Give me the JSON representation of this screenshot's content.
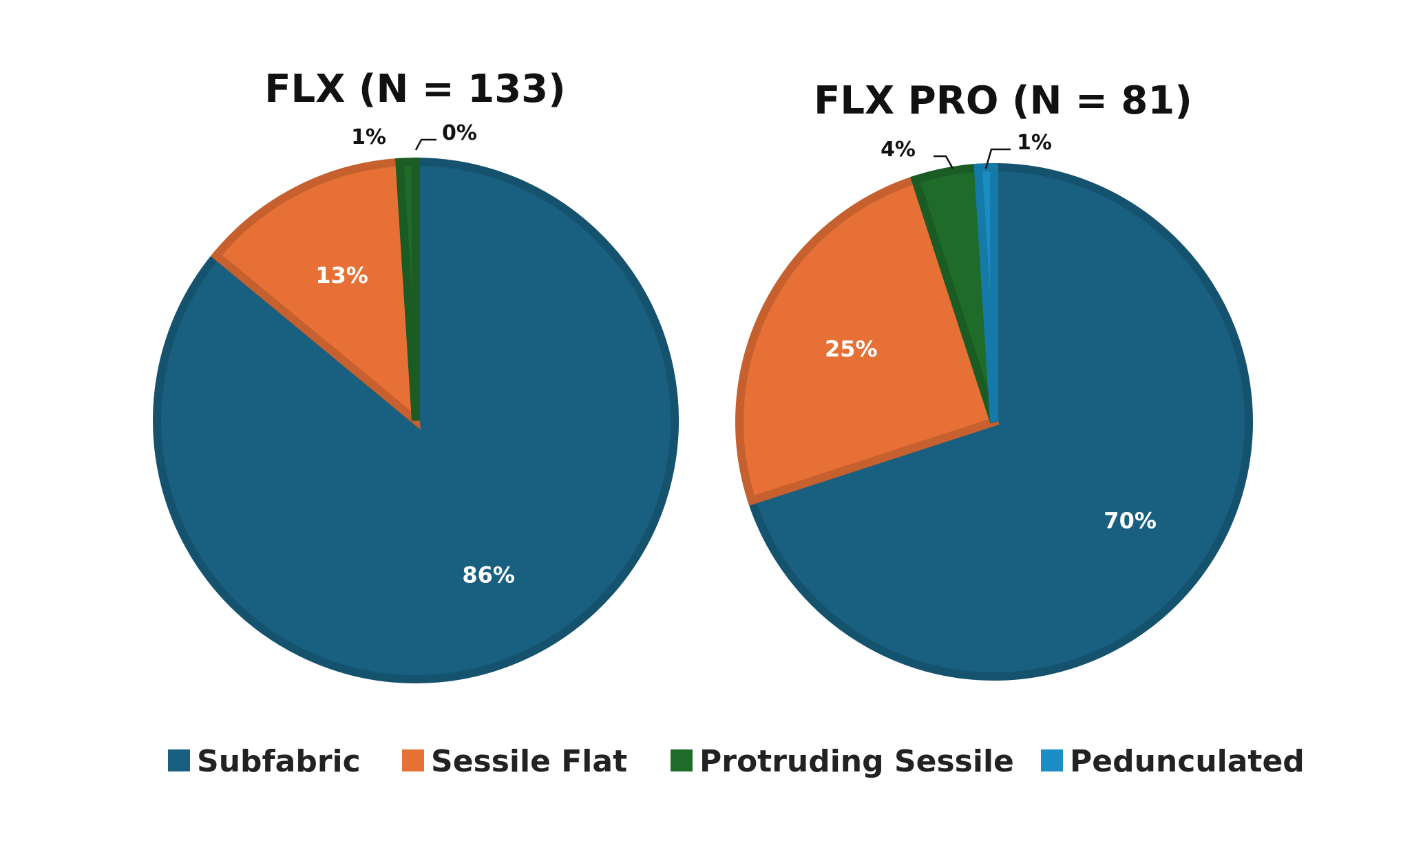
{
  "colors": {
    "Subfabric": "#185f80",
    "Sessile Flat": "#e67035",
    "Protruding Sessile": "#1e6b2a",
    "Pedunculated": "#1a8ec4"
  },
  "chart_data": [
    {
      "type": "pie",
      "title": "FLX (N = 133)",
      "categories": [
        "Subfabric",
        "Sessile Flat",
        "Protruding Sessile",
        "Pedunculated"
      ],
      "values": [
        86,
        13,
        1,
        0
      ],
      "labels": [
        "86%",
        "13%",
        "1%",
        "0%"
      ],
      "legend_position": "bottom"
    },
    {
      "type": "pie",
      "title": "FLX PRO (N = 81)",
      "categories": [
        "Subfabric",
        "Sessile Flat",
        "Protruding Sessile",
        "Pedunculated"
      ],
      "values": [
        70,
        25,
        4,
        1
      ],
      "labels": [
        "70%",
        "25%",
        "4%",
        "1%"
      ],
      "legend_position": "bottom"
    }
  ],
  "legend": [
    "Subfabric",
    "Sessile Flat",
    "Protruding Sessile",
    "Pedunculated"
  ]
}
